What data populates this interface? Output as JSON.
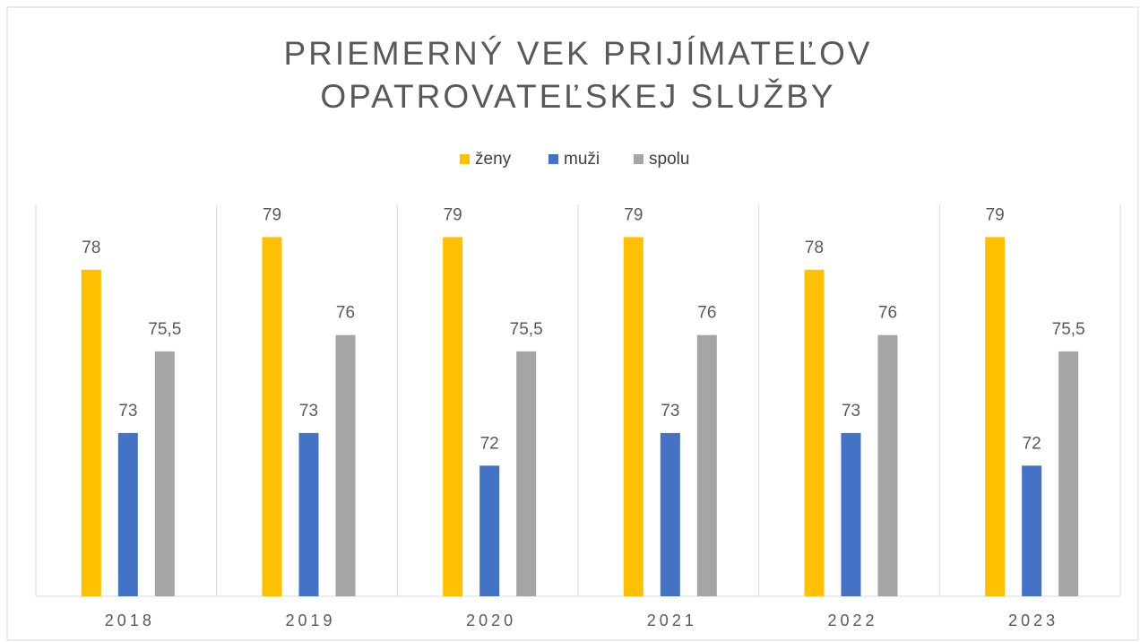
{
  "chart_data": {
    "type": "bar",
    "title": [
      "PRIEMERNÝ VEK PRIJÍMATEĽOV",
      "OPATROVATEĽSKEJ SLUŽBY"
    ],
    "categories": [
      "2018",
      "2019",
      "2020",
      "2021",
      "2022",
      "2023"
    ],
    "series": [
      {
        "name": "ženy",
        "color": "#ffc000",
        "values": [
          78,
          79,
          79,
          79,
          78,
          79
        ]
      },
      {
        "name": "muži",
        "color": "#4472c4",
        "values": [
          73,
          73,
          72,
          73,
          73,
          72
        ]
      },
      {
        "name": "spolu",
        "color": "#a5a5a5",
        "values": [
          75.5,
          76,
          75.5,
          76,
          76,
          75.5
        ],
        "value_labels": [
          "75,5",
          "76",
          "75,5",
          "76",
          "76",
          "75,5"
        ]
      }
    ],
    "ylim": [
      68,
      80
    ],
    "legend": "top"
  }
}
